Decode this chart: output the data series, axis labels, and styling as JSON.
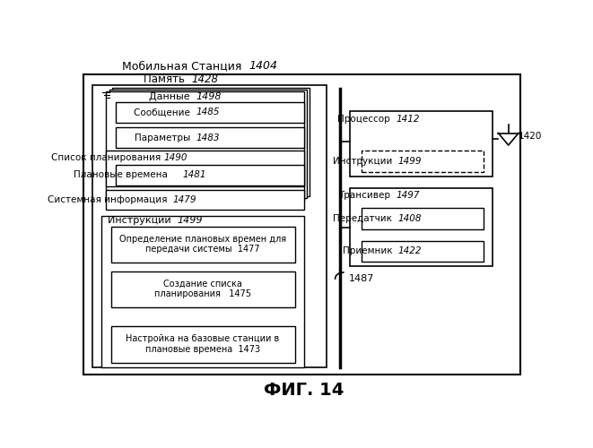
{
  "bg_color": "#ffffff",
  "title": "Мобильная Станция  1404",
  "fig_label": "ФИГ. 14",
  "bus_label": "1487",
  "antenna_label": "1420"
}
